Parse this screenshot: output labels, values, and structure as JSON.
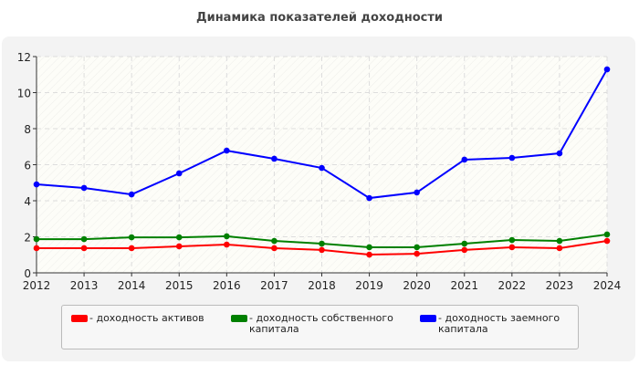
{
  "title": "Динамика показателей доходности",
  "chart_data": {
    "type": "line",
    "title": "Динамика показателей доходности",
    "x": [
      2012,
      2013,
      2014,
      2015,
      2016,
      2017,
      2018,
      2019,
      2020,
      2021,
      2022,
      2023,
      2024
    ],
    "ylim": [
      0,
      12
    ],
    "yticks": [
      0,
      2,
      4,
      6,
      8,
      10,
      12
    ],
    "grid": true,
    "legend_position": "bottom",
    "series": [
      {
        "name": "- доходность активов",
        "color": "#ff0000",
        "values": [
          1.37,
          1.37,
          1.37,
          1.47,
          1.57,
          1.37,
          1.27,
          1.01,
          1.06,
          1.27,
          1.42,
          1.37,
          1.77
        ]
      },
      {
        "name": "- доходность собственного капитала",
        "color": "#008000",
        "values": [
          1.87,
          1.87,
          1.97,
          1.97,
          2.03,
          1.77,
          1.62,
          1.42,
          1.42,
          1.62,
          1.82,
          1.77,
          2.13
        ]
      },
      {
        "name": "- доходность заемного капитала",
        "color": "#0000ff",
        "values": [
          4.91,
          4.71,
          4.35,
          5.52,
          6.78,
          6.33,
          5.82,
          4.15,
          4.46,
          6.28,
          6.38,
          6.63,
          11.29
        ]
      }
    ]
  }
}
